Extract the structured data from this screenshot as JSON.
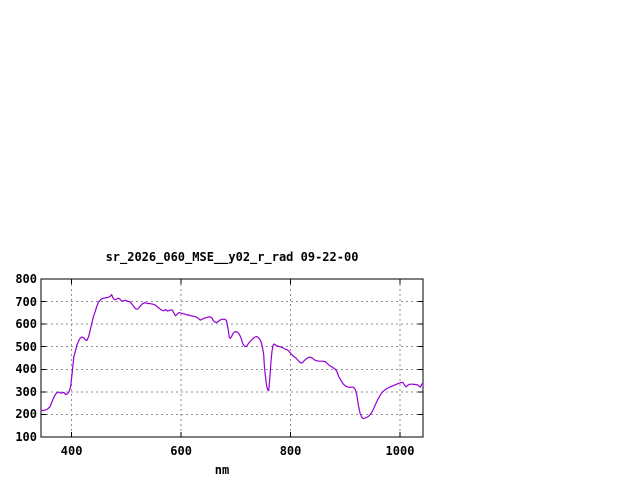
{
  "window": {
    "background": "#ffffff"
  },
  "chart_data": {
    "type": "line",
    "title": "sr_2026_060_MSE__y02_r_rad 09-22-00",
    "xlabel": "nm",
    "ylabel": "",
    "xlim": [
      344,
      1042
    ],
    "ylim": [
      100,
      800
    ],
    "grid": true,
    "legend": false,
    "x_ticks": [
      {
        "value": 400,
        "label": "400"
      },
      {
        "value": 600,
        "label": "600"
      },
      {
        "value": 800,
        "label": "800"
      },
      {
        "value": 1000,
        "label": "1000"
      }
    ],
    "y_ticks": [
      {
        "value": 100,
        "label": "100"
      },
      {
        "value": 200,
        "label": "200"
      },
      {
        "value": 300,
        "label": "300"
      },
      {
        "value": 400,
        "label": "400"
      },
      {
        "value": 500,
        "label": "500"
      },
      {
        "value": 600,
        "label": "600"
      },
      {
        "value": 700,
        "label": "700"
      },
      {
        "value": 800,
        "label": "800"
      }
    ],
    "colors": {
      "line": "#9400d3",
      "grid": "#8f8f8f",
      "axis": "#000000",
      "text": "#000000",
      "background": "#ffffff"
    },
    "series": [
      {
        "name": "sr_2026_060_MSE__y02_r_rad",
        "color": "#9400d3",
        "points": [
          [
            344,
            217
          ],
          [
            348,
            218
          ],
          [
            352,
            220
          ],
          [
            356,
            224
          ],
          [
            360,
            233
          ],
          [
            364,
            255
          ],
          [
            368,
            278
          ],
          [
            371,
            291
          ],
          [
            374,
            297
          ],
          [
            377,
            299
          ],
          [
            380,
            294
          ],
          [
            383,
            296
          ],
          [
            386,
            297
          ],
          [
            389,
            288
          ],
          [
            392,
            291
          ],
          [
            395,
            300
          ],
          [
            398,
            322
          ],
          [
            401,
            385
          ],
          [
            404,
            455
          ],
          [
            407,
            482
          ],
          [
            410,
            510
          ],
          [
            413,
            527
          ],
          [
            416,
            538
          ],
          [
            419,
            543
          ],
          [
            422,
            540
          ],
          [
            425,
            530
          ],
          [
            428,
            528
          ],
          [
            431,
            545
          ],
          [
            434,
            575
          ],
          [
            437,
            605
          ],
          [
            440,
            635
          ],
          [
            443,
            655
          ],
          [
            446,
            680
          ],
          [
            449,
            697
          ],
          [
            452,
            706
          ],
          [
            455,
            712
          ],
          [
            458,
            715
          ],
          [
            461,
            716
          ],
          [
            464,
            718
          ],
          [
            467,
            719
          ],
          [
            470,
            722
          ],
          [
            473,
            731
          ],
          [
            476,
            715
          ],
          [
            479,
            707
          ],
          [
            482,
            711
          ],
          [
            485,
            715
          ],
          [
            488,
            712
          ],
          [
            491,
            703
          ],
          [
            494,
            701
          ],
          [
            497,
            706
          ],
          [
            500,
            704
          ],
          [
            503,
            701
          ],
          [
            506,
            700
          ],
          [
            509,
            692
          ],
          [
            512,
            683
          ],
          [
            515,
            673
          ],
          [
            518,
            666
          ],
          [
            521,
            667
          ],
          [
            524,
            676
          ],
          [
            527,
            685
          ],
          [
            530,
            691
          ],
          [
            533,
            694
          ],
          [
            536,
            694
          ],
          [
            539,
            691
          ],
          [
            542,
            692
          ],
          [
            545,
            690
          ],
          [
            548,
            689
          ],
          [
            551,
            686
          ],
          [
            554,
            683
          ],
          [
            557,
            675
          ],
          [
            560,
            670
          ],
          [
            563,
            664
          ],
          [
            566,
            661
          ],
          [
            569,
            659
          ],
          [
            572,
            665
          ],
          [
            575,
            658
          ],
          [
            578,
            660
          ],
          [
            581,
            663
          ],
          [
            584,
            662
          ],
          [
            587,
            648
          ],
          [
            590,
            637
          ],
          [
            593,
            645
          ],
          [
            596,
            651
          ],
          [
            599,
            649
          ],
          [
            602,
            648
          ],
          [
            605,
            645
          ],
          [
            608,
            644
          ],
          [
            611,
            641
          ],
          [
            614,
            640
          ],
          [
            617,
            638
          ],
          [
            620,
            636
          ],
          [
            623,
            635
          ],
          [
            626,
            633
          ],
          [
            629,
            630
          ],
          [
            632,
            624
          ],
          [
            635,
            618
          ],
          [
            638,
            621
          ],
          [
            641,
            625
          ],
          [
            644,
            627
          ],
          [
            647,
            630
          ],
          [
            650,
            632
          ],
          [
            653,
            632
          ],
          [
            656,
            628
          ],
          [
            659,
            615
          ],
          [
            662,
            609
          ],
          [
            665,
            607
          ],
          [
            668,
            612
          ],
          [
            671,
            618
          ],
          [
            674,
            621
          ],
          [
            677,
            622
          ],
          [
            680,
            621
          ],
          [
            683,
            616
          ],
          [
            686,
            575
          ],
          [
            688,
            542
          ],
          [
            690,
            537
          ],
          [
            692,
            545
          ],
          [
            695,
            560
          ],
          [
            698,
            566
          ],
          [
            701,
            567
          ],
          [
            704,
            562
          ],
          [
            707,
            552
          ],
          [
            710,
            535
          ],
          [
            713,
            512
          ],
          [
            716,
            502
          ],
          [
            719,
            501
          ],
          [
            722,
            511
          ],
          [
            725,
            520
          ],
          [
            728,
            528
          ],
          [
            731,
            535
          ],
          [
            734,
            541
          ],
          [
            737,
            545
          ],
          [
            740,
            543
          ],
          [
            743,
            535
          ],
          [
            746,
            522
          ],
          [
            749,
            495
          ],
          [
            751,
            465
          ],
          [
            752,
            420
          ],
          [
            754,
            370
          ],
          [
            756,
            330
          ],
          [
            758,
            310
          ],
          [
            760,
            305
          ],
          [
            762,
            360
          ],
          [
            764,
            430
          ],
          [
            766,
            480
          ],
          [
            768,
            505
          ],
          [
            770,
            512
          ],
          [
            773,
            507
          ],
          [
            776,
            503
          ],
          [
            780,
            500
          ],
          [
            784,
            497
          ],
          [
            788,
            492
          ],
          [
            792,
            488
          ],
          [
            796,
            483
          ],
          [
            800,
            471
          ],
          [
            804,
            461
          ],
          [
            807,
            455
          ],
          [
            810,
            450
          ],
          [
            813,
            441
          ],
          [
            816,
            433
          ],
          [
            819,
            428
          ],
          [
            822,
            430
          ],
          [
            825,
            438
          ],
          [
            828,
            445
          ],
          [
            831,
            450
          ],
          [
            834,
            454
          ],
          [
            837,
            453
          ],
          [
            840,
            449
          ],
          [
            843,
            443
          ],
          [
            846,
            439
          ],
          [
            849,
            437
          ],
          [
            852,
            436
          ],
          [
            855,
            436
          ],
          [
            858,
            436
          ],
          [
            861,
            435
          ],
          [
            864,
            433
          ],
          [
            867,
            426
          ],
          [
            870,
            419
          ],
          [
            873,
            414
          ],
          [
            876,
            410
          ],
          [
            879,
            405
          ],
          [
            882,
            400
          ],
          [
            885,
            388
          ],
          [
            888,
            368
          ],
          [
            891,
            355
          ],
          [
            894,
            343
          ],
          [
            897,
            333
          ],
          [
            900,
            327
          ],
          [
            903,
            323
          ],
          [
            906,
            321
          ],
          [
            909,
            320
          ],
          [
            912,
            322
          ],
          [
            915,
            320
          ],
          [
            918,
            312
          ],
          [
            921,
            288
          ],
          [
            924,
            240
          ],
          [
            927,
            205
          ],
          [
            930,
            188
          ],
          [
            933,
            181
          ],
          [
            936,
            184
          ],
          [
            939,
            187
          ],
          [
            942,
            191
          ],
          [
            945,
            198
          ],
          [
            948,
            208
          ],
          [
            951,
            221
          ],
          [
            954,
            238
          ],
          [
            957,
            254
          ],
          [
            960,
            269
          ],
          [
            963,
            282
          ],
          [
            966,
            293
          ],
          [
            969,
            301
          ],
          [
            972,
            308
          ],
          [
            975,
            313
          ],
          [
            978,
            317
          ],
          [
            981,
            321
          ],
          [
            984,
            324
          ],
          [
            987,
            327
          ],
          [
            990,
            330
          ],
          [
            993,
            333
          ],
          [
            996,
            336
          ],
          [
            999,
            339
          ],
          [
            1002,
            341
          ],
          [
            1005,
            342
          ],
          [
            1008,
            331
          ],
          [
            1011,
            322
          ],
          [
            1014,
            329
          ],
          [
            1017,
            333
          ],
          [
            1020,
            334
          ],
          [
            1023,
            334
          ],
          [
            1026,
            333
          ],
          [
            1029,
            332
          ],
          [
            1032,
            331
          ],
          [
            1035,
            325
          ],
          [
            1037,
            321
          ],
          [
            1039,
            330
          ],
          [
            1041,
            338
          ],
          [
            1042,
            331
          ]
        ]
      }
    ]
  }
}
